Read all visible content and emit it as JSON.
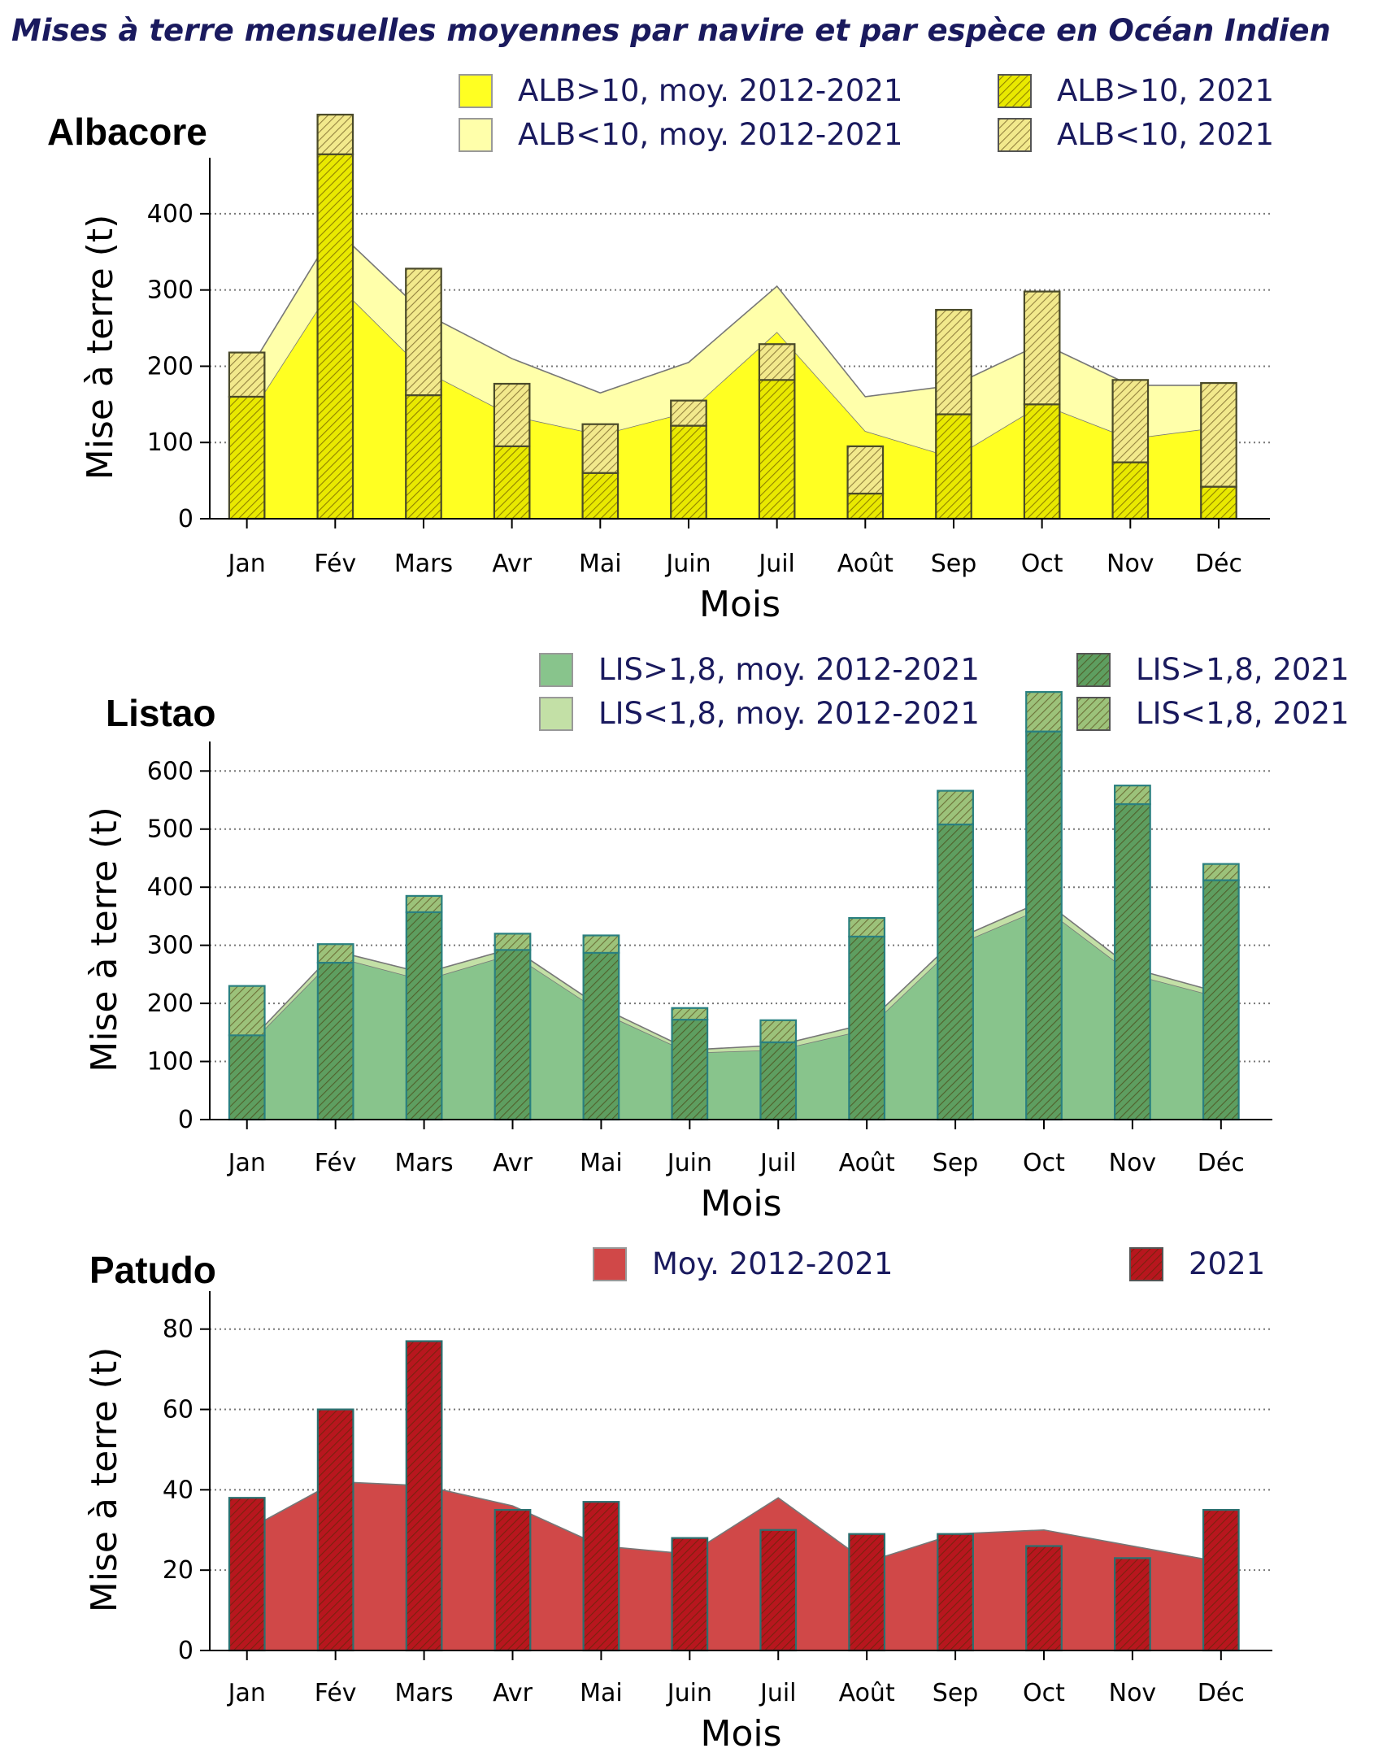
{
  "title": "Mises à terre mensuelles moyennes par navire et par espèce en Océan Indien",
  "chart_data": [
    {
      "type": "bar",
      "panel": "Albacore",
      "xlabel": "Mois",
      "ylabel": "Mise à terre (t)",
      "categories": [
        "Jan",
        "Fév",
        "Mars",
        "Avr",
        "Mai",
        "Juin",
        "Juil",
        "Août",
        "Sep",
        "Oct",
        "Nov",
        "Déc"
      ],
      "ylim": [
        0,
        450
      ],
      "yticks": [
        0,
        100,
        200,
        300,
        400
      ],
      "grid": true,
      "legend": [
        {
          "label": "ALB>10, moy. 2012-2021",
          "style": "area",
          "color": "#ffff22"
        },
        {
          "label": "ALB<10, moy. 2012-2021",
          "style": "area",
          "color": "#ffffaa"
        },
        {
          "label": "ALB>10, 2021",
          "style": "bar-hatched",
          "color": "#e9e900"
        },
        {
          "label": "ALB<10, 2021",
          "style": "bar-hatched",
          "color": "#f2e98c"
        }
      ],
      "area_series": [
        {
          "name": "ALB>10, moy. 2012-2021",
          "values": [
            130,
            310,
            195,
            135,
            110,
            140,
            245,
            115,
            80,
            150,
            105,
            120
          ],
          "color": "#ffff22"
        },
        {
          "name": "ALB<10, moy. 2012-2021",
          "values": [
            60,
            70,
            75,
            75,
            55,
            65,
            60,
            45,
            95,
            80,
            70,
            55
          ],
          "color": "#ffffaa"
        }
      ],
      "bar_series": [
        {
          "name": "ALB>10, 2021",
          "values": [
            160,
            478,
            162,
            95,
            60,
            122,
            182,
            33,
            137,
            150,
            74,
            42
          ],
          "color": "#e9e900"
        },
        {
          "name": "ALB<10, 2021",
          "values": [
            58,
            52,
            166,
            82,
            64,
            33,
            47,
            62,
            137,
            148,
            108,
            136
          ],
          "color": "#f2e98c"
        }
      ]
    },
    {
      "type": "bar",
      "panel": "Listao",
      "xlabel": "Mois",
      "ylabel": "Mise à terre (t)",
      "categories": [
        "Jan",
        "Fév",
        "Mars",
        "Avr",
        "Mai",
        "Juin",
        "Juil",
        "Août",
        "Sep",
        "Oct",
        "Nov",
        "Déc"
      ],
      "ylim": [
        0,
        620
      ],
      "yticks": [
        0,
        100,
        200,
        300,
        400,
        500,
        600
      ],
      "grid": true,
      "legend": [
        {
          "label": "LIS>1,8, moy. 2012-2021",
          "style": "area",
          "color": "#88c48c"
        },
        {
          "label": "LIS<1,8, moy. 2012-2021",
          "style": "area",
          "color": "#c3e0a6"
        },
        {
          "label": "LIS>1,8, 2021",
          "style": "bar-hatched",
          "color": "#5e9e60"
        },
        {
          "label": "LIS<1,8, 2021",
          "style": "bar-hatched",
          "color": "#9cc27a"
        }
      ],
      "area_series": [
        {
          "name": "LIS>1,8, moy. 2012-2021",
          "values": [
            125,
            280,
            240,
            285,
            185,
            115,
            120,
            155,
            300,
            365,
            250,
            210
          ],
          "color": "#88c48c"
        },
        {
          "name": "LIS<1,8, moy. 2012-2021",
          "values": [
            5,
            10,
            12,
            10,
            8,
            5,
            8,
            10,
            10,
            12,
            10,
            8
          ],
          "color": "#c3e0a6"
        }
      ],
      "bar_series": [
        {
          "name": "LIS>1,8, 2021",
          "values": [
            145,
            270,
            357,
            292,
            287,
            172,
            133,
            315,
            508,
            668,
            543,
            412
          ],
          "color": "#5e9e60"
        },
        {
          "name": "LIS<1,8, 2021",
          "values": [
            85,
            32,
            28,
            28,
            30,
            20,
            38,
            32,
            58,
            68,
            32,
            28
          ],
          "color": "#9cc27a"
        }
      ]
    },
    {
      "type": "bar",
      "panel": "Patudo",
      "xlabel": "Mois",
      "ylabel": "Mise à terre (t)",
      "categories": [
        "Jan",
        "Fév",
        "Mars",
        "Avr",
        "Mai",
        "Juin",
        "Juil",
        "Août",
        "Sep",
        "Oct",
        "Nov",
        "Déc"
      ],
      "ylim": [
        0,
        85
      ],
      "yticks": [
        0,
        20,
        40,
        60,
        80
      ],
      "grid": true,
      "legend": [
        {
          "label": "Moy. 2012-2021",
          "style": "area",
          "color": "#d04848"
        },
        {
          "label": "2021",
          "style": "bar-hatched",
          "color": "#b8161e"
        }
      ],
      "area_series": [
        {
          "name": "Moy. 2012-2021",
          "values": [
            30,
            42,
            41,
            36,
            26,
            24,
            38,
            22,
            29,
            30,
            26,
            22
          ],
          "color": "#d04848"
        }
      ],
      "bar_series": [
        {
          "name": "2021",
          "values": [
            38,
            60,
            77,
            35,
            37,
            28,
            30,
            29,
            29,
            26,
            23,
            35
          ],
          "color": "#b8161e"
        }
      ]
    }
  ]
}
